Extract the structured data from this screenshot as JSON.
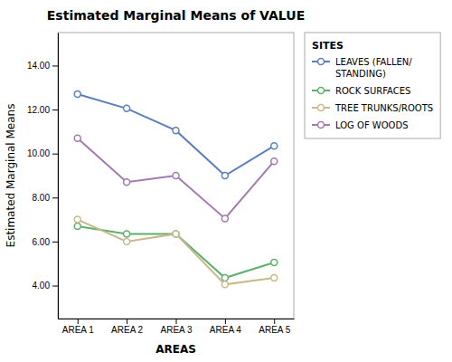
{
  "chart_data": {
    "type": "line",
    "title": "Estimated Marginal Means of VALUE",
    "x_label": "AREAS",
    "y_label": "Estimated Marginal Means",
    "legend_title": "SITES",
    "categories": [
      "AREA 1",
      "AREA 2",
      "AREA 3",
      "AREA 4",
      "AREA 5"
    ],
    "series": [
      {
        "name": "LEAVES (FALLEN/\nSTANDING)",
        "color": "#5B7FBE",
        "values": [
          12.7,
          12.05,
          11.05,
          9.0,
          10.35
        ]
      },
      {
        "name": "ROCK SURFACES",
        "color": "#5DAF6A",
        "values": [
          6.7,
          6.35,
          6.35,
          4.35,
          5.05
        ]
      },
      {
        "name": "TREE TRUNKS/ROOTS",
        "color": "#C8B98A",
        "values": [
          7.0,
          6.0,
          6.35,
          4.05,
          4.35
        ]
      },
      {
        "name": "LOG OF WOODS",
        "color": "#A07AB0",
        "values": [
          10.7,
          8.7,
          9.0,
          7.05,
          9.65
        ]
      }
    ],
    "ylim": [
      2.5,
      15.5
    ],
    "yticks": [
      {
        "value": 4.0,
        "label": "4.00"
      },
      {
        "value": 6.0,
        "label": "6.00"
      },
      {
        "value": 8.0,
        "label": "8.00"
      },
      {
        "value": 10.0,
        "label": "10.00"
      },
      {
        "value": 12.0,
        "label": "12.00"
      },
      {
        "value": 14.0,
        "label": "14.00"
      }
    ],
    "marker": "circle",
    "grid": false,
    "legend": "right"
  }
}
